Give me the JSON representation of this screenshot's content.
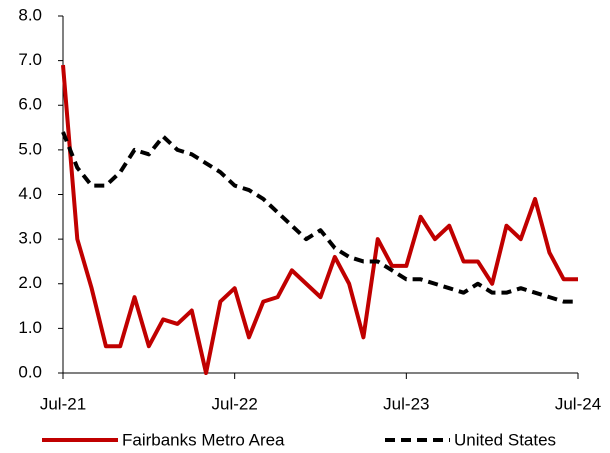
{
  "chart_data": {
    "type": "line",
    "categories": [
      "Jul-21",
      null,
      null,
      null,
      null,
      null,
      null,
      null,
      null,
      null,
      null,
      null,
      "Jul-22",
      null,
      null,
      null,
      null,
      null,
      null,
      null,
      null,
      null,
      null,
      null,
      "Jul-23",
      null,
      null,
      null,
      null,
      null,
      null,
      null,
      null,
      null,
      null,
      null,
      "Jul-24"
    ],
    "series": [
      {
        "name": "Fairbanks Metro Area",
        "color": "#c00000",
        "style": "solid",
        "values": [
          6.9,
          3.0,
          1.9,
          0.6,
          0.6,
          1.7,
          0.6,
          1.2,
          1.1,
          1.4,
          0.0,
          1.6,
          1.9,
          0.8,
          1.6,
          1.7,
          2.3,
          2.0,
          1.7,
          2.6,
          2.0,
          0.8,
          3.0,
          2.4,
          2.4,
          3.5,
          3.0,
          3.3,
          2.5,
          2.5,
          2.0,
          3.3,
          3.0,
          3.9,
          2.7,
          2.1,
          2.1
        ]
      },
      {
        "name": "United States",
        "color": "#000000",
        "style": "dashed",
        "values": [
          5.4,
          4.6,
          4.2,
          4.2,
          4.5,
          5.0,
          4.9,
          5.3,
          5.0,
          4.9,
          4.7,
          4.5,
          4.2,
          4.1,
          3.9,
          3.6,
          3.3,
          3.0,
          3.2,
          2.8,
          2.6,
          2.5,
          2.5,
          2.3,
          2.1,
          2.1,
          2.0,
          1.9,
          1.8,
          2.0,
          1.8,
          1.8,
          1.9,
          1.8,
          1.7,
          1.6,
          1.6
        ]
      }
    ],
    "ylim": [
      0,
      8
    ],
    "yticks": [
      {
        "value": 0,
        "label": "0.0"
      },
      {
        "value": 1,
        "label": "1.0"
      },
      {
        "value": 2,
        "label": "2.0"
      },
      {
        "value": 3,
        "label": "3.0"
      },
      {
        "value": 4,
        "label": "4.0"
      },
      {
        "value": 5,
        "label": "5.0"
      },
      {
        "value": 6,
        "label": "6.0"
      },
      {
        "value": 7,
        "label": "7.0"
      },
      {
        "value": 8,
        "label": "8.0"
      }
    ],
    "grid": false,
    "legend": "bottom"
  }
}
